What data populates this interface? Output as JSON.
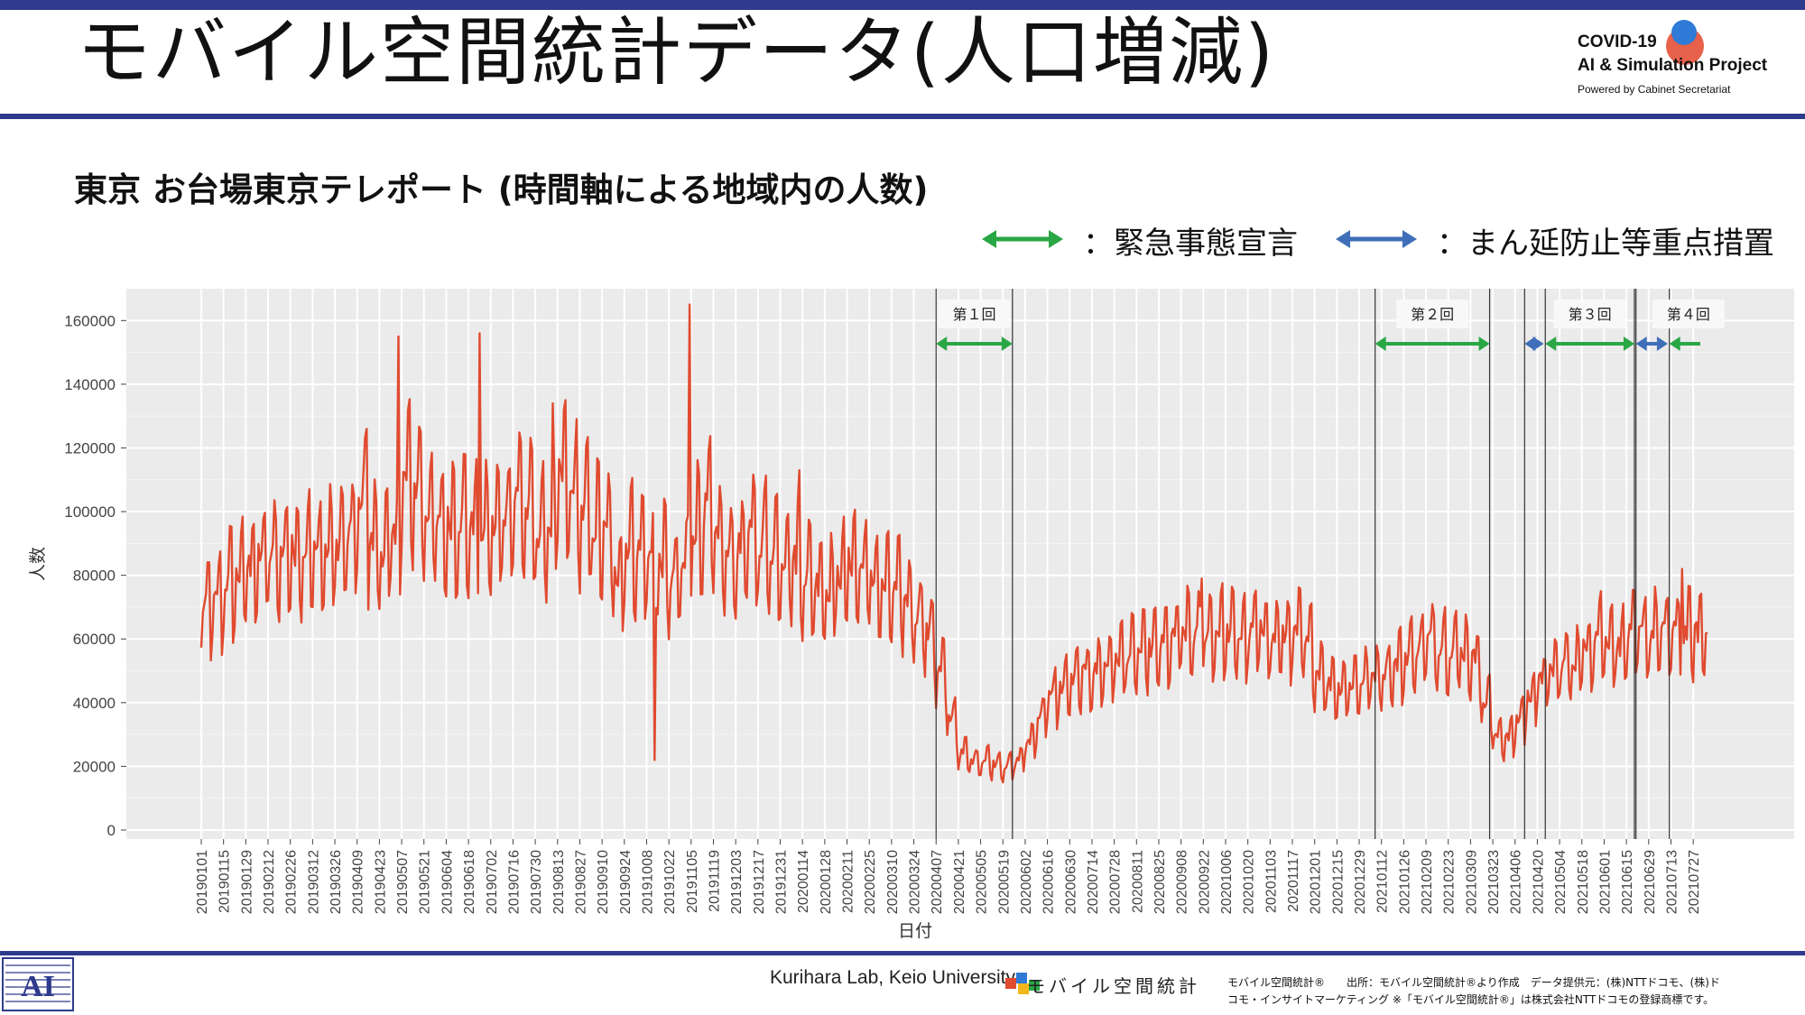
{
  "slide": {
    "title": "モバイル空間統計データ(人口増減)",
    "logo_line1": "COVID-19",
    "logo_line2": "AI & Simulation Project",
    "logo_sub": "Powered by Cabinet Secretariat"
  },
  "legend": {
    "emergency_label": "：緊急事態宣言",
    "emergency_color": "#2aa745",
    "semi_label": "：まん延防止等重点措置",
    "semi_color": "#3f6fb8"
  },
  "footer": {
    "lab": "Kurihara Lab, Keio University",
    "mobile_brand": "モバイル空間統計",
    "note_line1": "モバイル空間統計®　　出所：モバイル空間統計®より作成　データ提供元：(株)NTTドコモ、(株)ド",
    "note_line2": "コモ・インサイトマーケティング ※「モバイル空間統計®」は株式会社NTTドコモの登録商標です。"
  },
  "chart_data": {
    "type": "line",
    "title": "東京 お台場東京テレポート (時間軸による地域内の人数)",
    "xlabel": "日付",
    "ylabel": "人数",
    "ylim": [
      0,
      170000
    ],
    "yticks": [
      0,
      20000,
      40000,
      60000,
      80000,
      100000,
      120000,
      140000,
      160000
    ],
    "grid": true,
    "line_color": "#e04a2f",
    "x_start": "2019-01-01",
    "x_end": "2021-08-05",
    "x_tick_labels": [
      "20190101",
      "20190115",
      "20190129",
      "20190212",
      "20190226",
      "20190312",
      "20190326",
      "20190409",
      "20190423",
      "20190507",
      "20190521",
      "20190604",
      "20190618",
      "20190702",
      "20190716",
      "20190730",
      "20190813",
      "20190827",
      "20190910",
      "20190924",
      "20191008",
      "20191022",
      "20191105",
      "20191119",
      "20191203",
      "20191217",
      "20191231",
      "20200114",
      "20200128",
      "20200211",
      "20200225",
      "20200310",
      "20200324",
      "20200407",
      "20200421",
      "20200505",
      "20200519",
      "20200602",
      "20200616",
      "20200630",
      "20200714",
      "20200728",
      "20200811",
      "20200825",
      "20200908",
      "20200922",
      "20201006",
      "20201020",
      "20201103",
      "20201117",
      "20201201",
      "20201215",
      "20201229",
      "20210112",
      "20210126",
      "20210209",
      "20210223",
      "20210309",
      "20210323",
      "20210406",
      "20210420",
      "20210504",
      "20210518",
      "20210601",
      "20210615",
      "20210629",
      "20210713",
      "20210727"
    ],
    "weekly_series": {
      "name": "人数",
      "weeks_from": "2019-01-01",
      "values": [
        70000,
        72000,
        78000,
        80000,
        83000,
        85000,
        86000,
        87000,
        88000,
        88000,
        87000,
        88000,
        90000,
        92000,
        100000,
        90000,
        88000,
        92000,
        110000,
        108000,
        100000,
        95000,
        97000,
        98000,
        95000,
        94000,
        95000,
        100000,
        105000,
        100000,
        94000,
        96000,
        110000,
        105000,
        100000,
        95000,
        93000,
        80000,
        90000,
        88000,
        86000,
        84000,
        78000,
        82000,
        95000,
        100000,
        90000,
        86000,
        88000,
        92000,
        91000,
        88000,
        86000,
        85000,
        80000,
        78000,
        76000,
        80000,
        84000,
        82000,
        78000,
        76000,
        75000,
        72000,
        68000,
        62000,
        50000,
        35000,
        24000,
        22000,
        22000,
        21000,
        20000,
        22000,
        28000,
        36000,
        42000,
        45000,
        47000,
        49000,
        50000,
        52000,
        54000,
        55000,
        56000,
        57000,
        58000,
        60000,
        62000,
        61000,
        62000,
        63000,
        62000,
        61000,
        62000,
        63000,
        60000,
        61000,
        62000,
        58000,
        50000,
        46000,
        45000,
        46000,
        47000,
        49000,
        50000,
        52000,
        55000,
        57000,
        60000,
        58000,
        57000,
        56000,
        54000,
        40000,
        30000,
        29000,
        35000,
        42000,
        47000,
        50000,
        52000,
        53000,
        57000,
        62000,
        60000,
        58000,
        61000,
        62000
      ]
    },
    "spikes": [
      {
        "date": "2019-04-15",
        "value": 126000
      },
      {
        "date": "2019-05-05",
        "value": 155000
      },
      {
        "date": "2019-06-25",
        "value": 156000
      },
      {
        "date": "2019-08-10",
        "value": 134000
      },
      {
        "date": "2019-10-13",
        "value": 22000
      },
      {
        "date": "2019-11-04",
        "value": 165000
      },
      {
        "date": "2020-01-12",
        "value": 113000
      },
      {
        "date": "2020-09-21",
        "value": 79000
      },
      {
        "date": "2021-07-20",
        "value": 82000
      }
    ],
    "periods": [
      {
        "label": "第１回",
        "kind": "emergency",
        "start": "2020-04-07",
        "end": "2020-05-25"
      },
      {
        "label": "第２回",
        "kind": "emergency",
        "start": "2021-01-08",
        "end": "2021-03-21"
      },
      {
        "label": "",
        "kind": "semi",
        "start": "2021-04-12",
        "end": "2021-04-24"
      },
      {
        "label": "第３回",
        "kind": "emergency",
        "start": "2021-04-25",
        "end": "2021-06-20"
      },
      {
        "label": "",
        "kind": "semi",
        "start": "2021-06-21",
        "end": "2021-07-11"
      },
      {
        "label": "第４回",
        "kind": "emergency",
        "start": "2021-07-12",
        "end": "2021-08-05"
      }
    ]
  }
}
